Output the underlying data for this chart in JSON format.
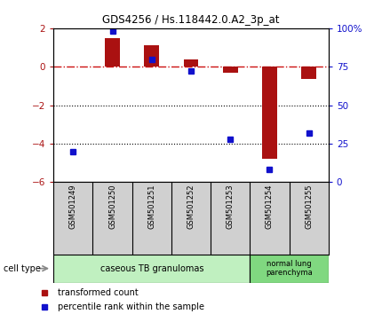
{
  "title": "GDS4256 / Hs.118442.0.A2_3p_at",
  "samples": [
    "GSM501249",
    "GSM501250",
    "GSM501251",
    "GSM501252",
    "GSM501253",
    "GSM501254",
    "GSM501255"
  ],
  "transformed_count": [
    0.02,
    1.5,
    1.1,
    0.4,
    -0.3,
    -4.8,
    -0.65
  ],
  "percentile_rank": [
    20,
    98,
    80,
    72,
    28,
    8,
    32
  ],
  "left_ylim": [
    -6,
    2
  ],
  "left_yticks": [
    -6,
    -4,
    -2,
    0,
    2
  ],
  "right_ylim": [
    0,
    100
  ],
  "right_yticks": [
    0,
    25,
    50,
    75,
    100
  ],
  "right_yticklabels": [
    "0",
    "25",
    "50",
    "75",
    "100%"
  ],
  "bar_color_red": "#aa1111",
  "bar_color_blue": "#1111cc",
  "hline_color": "#cc1111",
  "dotted_color": "#000000",
  "group1_label": "caseous TB granulomas",
  "group2_label": "normal lung\nparenchyma",
  "group1_color": "#c0f0c0",
  "group2_color": "#80d880",
  "sample_box_color": "#d0d0d0",
  "legend_red_label": "transformed count",
  "legend_blue_label": "percentile rank within the sample",
  "cell_type_label": "cell type"
}
